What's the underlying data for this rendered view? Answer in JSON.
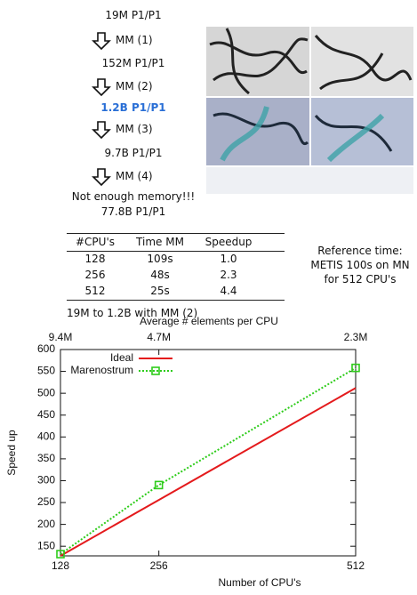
{
  "flow": {
    "meshes": [
      "19M P1/P1",
      "152M P1/P1",
      "1.2B P1/P1",
      "9.7B P1/P1",
      "77.8B P1/P1"
    ],
    "operations": [
      "MM (1)",
      "MM (2)",
      "MM (3)",
      "MM (4)"
    ],
    "failure": "Not enough memory!!!"
  },
  "table": {
    "columns": [
      "#CPU's",
      "Time MM",
      "Speedup"
    ],
    "rows": [
      [
        "128",
        "109s",
        "1.0"
      ],
      [
        "256",
        "48s",
        "2.3"
      ],
      [
        "512",
        "25s",
        "4.4"
      ]
    ],
    "caption": "19M to 1.2B with MM (2)"
  },
  "note": [
    "Reference time:",
    "METIS 100s on MN",
    "for 512 CPU's"
  ],
  "chart_data": {
    "type": "line",
    "xlabel": "Number of CPU's",
    "ylabel": "Speed up",
    "x2label": "Average # elements per CPU",
    "x": [
      128,
      256,
      512
    ],
    "series": [
      {
        "name": "Ideal",
        "color": "#e41a1c",
        "values": [
          128,
          256,
          512
        ]
      },
      {
        "name": "Marenostrum",
        "color": "#2ecc1a",
        "values": [
          132,
          290,
          558
        ]
      }
    ],
    "xlim": [
      128,
      512
    ],
    "xticks": [
      128,
      256,
      512
    ],
    "x2ticks": [
      {
        "value": 128,
        "label": "9.4M"
      },
      {
        "value": 256,
        "label": "4.7M"
      },
      {
        "value": 512,
        "label": "2.3M"
      }
    ],
    "ylim": [
      128,
      600
    ],
    "yticks": [
      150,
      200,
      250,
      300,
      350,
      400,
      450,
      500,
      550,
      600
    ],
    "grid": false,
    "legend": "upper-left"
  }
}
